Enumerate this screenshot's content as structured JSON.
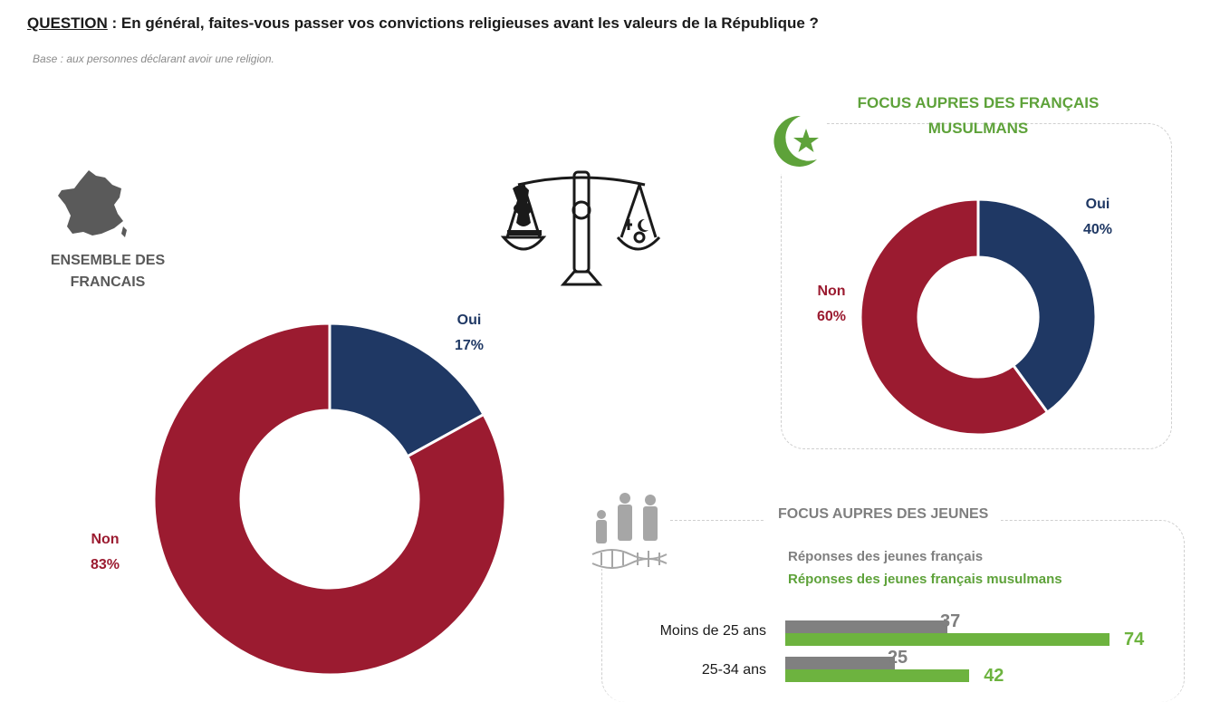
{
  "question": {
    "label": "QUESTION",
    "text": " :  En général, faites-vous passer vos convictions religieuses avant les valeurs de la République ?"
  },
  "base": "Base : aux personnes déclarant avoir une religion.",
  "ensemble_label": "ENSEMBLE DES FRANCAIS",
  "focus_musulmans_title": "FOCUS AUPRES DES FRANÇAIS MUSULMANS",
  "focus_jeunes_title": "FOCUS AUPRES DES JEUNES",
  "colors": {
    "oui": "#1f3864",
    "non": "#9b1b30",
    "grey": "#808080",
    "green": "#6db33f"
  },
  "icons": [
    "france-map-icon",
    "scales-icon",
    "crescent-star-icon",
    "family-dna-icon"
  ],
  "chart_data": [
    {
      "type": "pie",
      "subtype": "donut",
      "labels": [
        "Oui",
        "Non"
      ],
      "values": [
        17,
        83
      ],
      "value_labels": [
        "17%",
        "83%"
      ],
      "colors": [
        "#1f3864",
        "#9b1b30"
      ]
    },
    {
      "type": "pie",
      "subtype": "donut",
      "labels": [
        "Oui",
        "Non"
      ],
      "values": [
        40,
        60
      ],
      "value_labels": [
        "40%",
        "60%"
      ],
      "colors": [
        "#1f3864",
        "#9b1b30"
      ]
    },
    {
      "type": "bar",
      "orientation": "horizontal",
      "categories": [
        "Moins de 25 ans",
        "25-34 ans"
      ],
      "series": [
        {
          "name": "Réponses des jeunes français",
          "values": [
            37,
            25
          ],
          "color": "#808080"
        },
        {
          "name": "Réponses des jeunes français musulmans",
          "values": [
            74,
            42
          ],
          "color": "#6db33f"
        }
      ]
    }
  ]
}
